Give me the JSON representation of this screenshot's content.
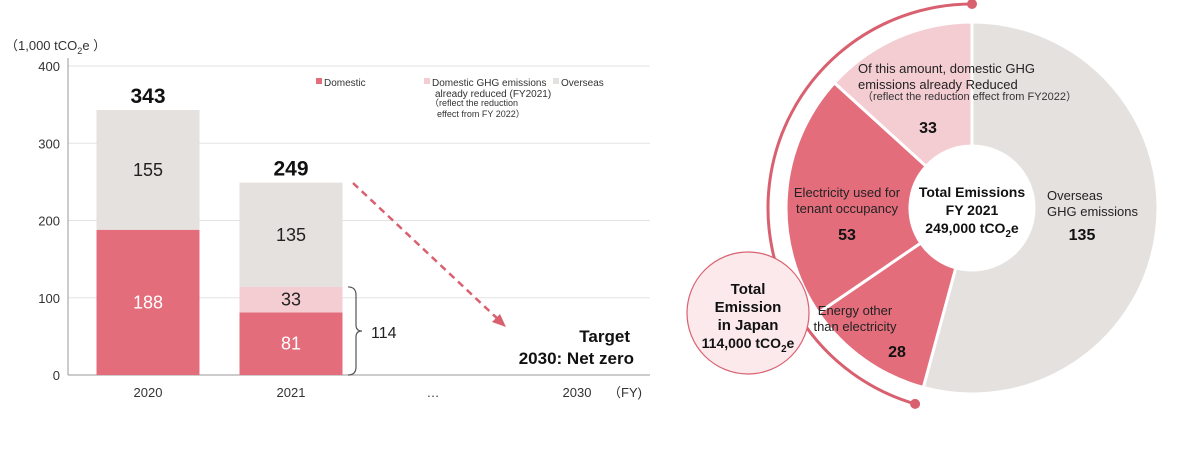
{
  "colors": {
    "domestic": "#e46d7c",
    "reduced": "#f4cdd3",
    "overseas": "#e5e1de",
    "accent": "#d9606f",
    "japan_fill": "#fbe9ec"
  },
  "chart_data": [
    {
      "type": "bar",
      "stacked": true,
      "ylabel": "（1,000 tCO2e）",
      "ylabel_main": "（1,000 tCO",
      "ylabel_sub": "2",
      "ylabel_tail": "e ）",
      "xlabel": "（FY)",
      "ylim": [
        0,
        400
      ],
      "yticks": [
        "0",
        "100",
        "200",
        "300",
        "400"
      ],
      "grid": true,
      "legend_position": "top-right",
      "categories": [
        "2020",
        "2021",
        "…",
        "2030"
      ],
      "series": [
        {
          "name": "Domestic",
          "key": "domestic",
          "values": [
            188,
            81,
            null,
            null
          ]
        },
        {
          "name": "Domestic GHG emissions already reduced (FY2021)",
          "key": "reduced",
          "values": [
            0,
            33,
            null,
            null
          ]
        },
        {
          "name": "Overseas",
          "key": "overseas",
          "values": [
            155,
            135,
            null,
            null
          ]
        }
      ],
      "legend": [
        {
          "key": "domestic",
          "lines": [
            "Domestic"
          ]
        },
        {
          "key": "reduced",
          "lines": [
            "Domestic GHG emissions",
            "already reduced (FY2021)"
          ]
        },
        {
          "key": "overseas",
          "lines": [
            "Overseas"
          ]
        }
      ],
      "legend_note": [
        "（reflect the reduction",
        "effect from FY 2022）"
      ],
      "totals": [
        "343",
        "249"
      ],
      "bracket_label": "114",
      "target": [
        "Target",
        "2030: Net zero"
      ]
    },
    {
      "type": "pie",
      "style": "donut",
      "slices": [
        {
          "key": "overseas",
          "label": [
            "Overseas",
            "GHG emissions"
          ],
          "value": 135
        },
        {
          "key": "domestic",
          "label": [
            "Energy other",
            "than electricity"
          ],
          "value": 28
        },
        {
          "key": "domestic",
          "label": [
            "Electricity used for",
            "tenant occupancy"
          ],
          "value": 53
        },
        {
          "key": "reduced",
          "label": [
            "Of this amount, domestic GHG",
            "emissions already Reduced"
          ],
          "sublabel": "（reflect the reduction effect from FY2022）",
          "value": 33
        }
      ],
      "center": {
        "line1": "Total Emissions",
        "line2": "FY 2021",
        "line3_main": "249,000 tCO",
        "line3_sub": "2",
        "line3_tail": "e"
      },
      "japan": {
        "line1": "Total",
        "line2": "Emission",
        "line3": "in Japan",
        "line4_main": "114,000 tCO",
        "line4_sub": "2",
        "line4_tail": "e"
      }
    }
  ]
}
